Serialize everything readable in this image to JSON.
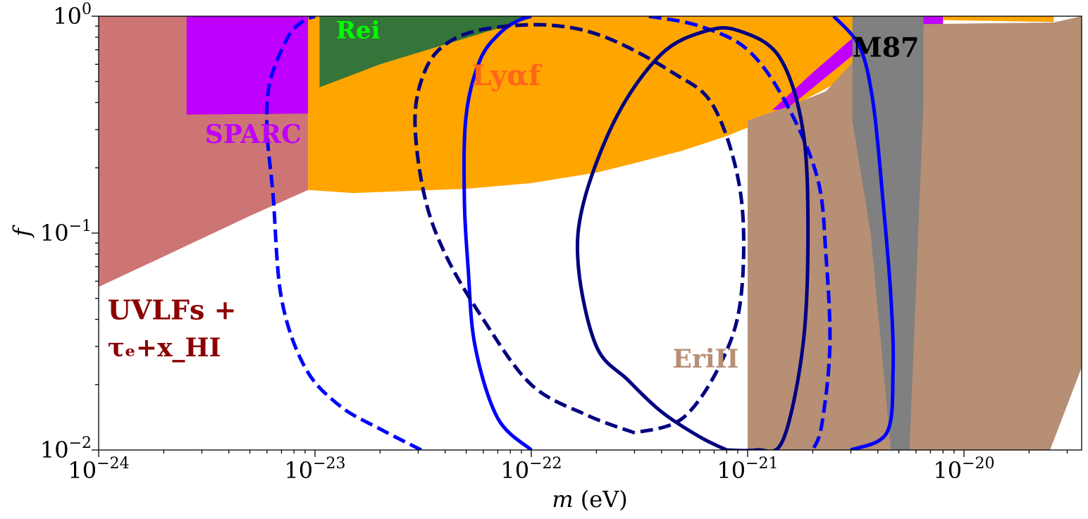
{
  "chart_data": {
    "type": "area",
    "xlabel_var": "m",
    "xlabel_unit": "(eV)",
    "ylabel": "f",
    "x_scale": "log",
    "y_scale": "log",
    "xlim": [
      1e-24,
      3.5e-20
    ],
    "ylim": [
      0.01,
      1
    ],
    "x_ticks": [
      {
        "value": 1e-24,
        "base": "10",
        "exp": "−24"
      },
      {
        "value": 1e-23,
        "base": "10",
        "exp": "−23"
      },
      {
        "value": 1e-22,
        "base": "10",
        "exp": "−22"
      },
      {
        "value": 1e-21,
        "base": "10",
        "exp": "−21"
      },
      {
        "value": 1e-20,
        "base": "10",
        "exp": "−20"
      }
    ],
    "y_ticks": [
      {
        "value": 0.01,
        "base": "10",
        "exp": "−2"
      },
      {
        "value": 0.1,
        "base": "10",
        "exp": "−1"
      },
      {
        "value": 1,
        "base": "10",
        "exp": "0"
      }
    ],
    "regions": [
      {
        "name": "UVLFs",
        "color": "#cd7575",
        "points": [
          [
            1e-24,
            0.0565
          ],
          [
            2e-24,
            0.078
          ],
          [
            5e-24,
            0.12
          ],
          [
            9.3e-24,
            0.158
          ],
          [
            9.3e-24,
            1
          ],
          [
            1e-24,
            1
          ]
        ]
      },
      {
        "name": "SPARC",
        "color": "#bf00ff",
        "points": [
          [
            2.55e-24,
            1
          ],
          [
            9.3e-24,
            1
          ],
          [
            9.3e-24,
            0.356
          ],
          [
            2.55e-24,
            0.352
          ]
        ]
      },
      {
        "name": "Lyαf",
        "color": "#ffa500",
        "points": [
          [
            9.3e-24,
            1
          ],
          [
            2.6e-20,
            1
          ],
          [
            2.6e-20,
            0.94
          ],
          [
            8e-21,
            0.96
          ],
          [
            8e-21,
            0.89
          ],
          [
            1.2e-21,
            0.33
          ],
          [
            8e-22,
            0.28
          ],
          [
            5e-22,
            0.24
          ],
          [
            3e-22,
            0.21
          ],
          [
            2e-22,
            0.19
          ],
          [
            1e-22,
            0.17
          ],
          [
            5e-23,
            0.16
          ],
          [
            1.5e-23,
            0.153
          ],
          [
            9.3e-24,
            0.158
          ]
        ]
      },
      {
        "name": "SPARC-high",
        "color": "#bf00ff",
        "points": [
          [
            1.5e-21,
            0.37
          ],
          [
            3e-21,
            0.65
          ],
          [
            4e-21,
            0.8
          ],
          [
            8e-21,
            0.9
          ],
          [
            8e-21,
            1
          ],
          [
            4e-21,
            1
          ],
          [
            2e-21,
            0.55
          ],
          [
            1.3e-21,
            0.37
          ]
        ]
      },
      {
        "name": "EriII",
        "color": "#b68f75",
        "points": [
          [
            1e-21,
            0.01
          ],
          [
            1e-21,
            0.33
          ],
          [
            1.5e-21,
            0.38
          ],
          [
            2.3e-21,
            0.45
          ],
          [
            3e-21,
            0.6
          ],
          [
            6.5e-21,
            0.92
          ],
          [
            2.6e-20,
            0.935
          ],
          [
            3.5e-20,
            1
          ],
          [
            3.5e-20,
            0.024
          ],
          [
            2.5e-20,
            0.01
          ]
        ]
      },
      {
        "name": "Rei",
        "color": "#35753a",
        "points": [
          [
            1.05e-23,
            1
          ],
          [
            1e-22,
            1
          ],
          [
            1e-22,
            0.98
          ],
          [
            2e-23,
            0.6
          ],
          [
            1.05e-23,
            0.47
          ]
        ]
      },
      {
        "name": "M87",
        "color": "#808080",
        "points": [
          [
            3.05e-21,
            1
          ],
          [
            6.5e-21,
            1
          ],
          [
            6.5e-21,
            0.4
          ],
          [
            5.6e-21,
            0.01
          ],
          [
            4.6e-21,
            0.01
          ],
          [
            3.7e-21,
            0.1
          ],
          [
            3.05e-21,
            0.33
          ]
        ]
      }
    ],
    "curves": [
      {
        "color": "#0000ff",
        "dash": true,
        "points": [
          [
            3.1e-23,
            0.01
          ],
          [
            2e-23,
            0.0125
          ],
          [
            1.3e-23,
            0.016
          ],
          [
            9e-24,
            0.024
          ],
          [
            7e-24,
            0.05
          ],
          [
            6.4e-24,
            0.15
          ],
          [
            6e-24,
            0.3
          ],
          [
            6.2e-24,
            0.5
          ],
          [
            7.5e-24,
            0.8
          ],
          [
            8.7e-24,
            0.94
          ],
          [
            1e-23,
            1
          ]
        ]
      },
      {
        "color": "#0000ff",
        "dash": true,
        "points": [
          [
            3.5e-22,
            1
          ],
          [
            6e-22,
            0.9
          ],
          [
            1e-21,
            0.7
          ],
          [
            1.5e-21,
            0.4
          ],
          [
            2.1e-21,
            0.18
          ],
          [
            2.3e-21,
            0.08
          ],
          [
            2.4e-21,
            0.03
          ],
          [
            2.2e-21,
            0.013
          ],
          [
            2e-21,
            0.01
          ]
        ]
      },
      {
        "color": "#0000ff",
        "dash": false,
        "points": [
          [
            1e-22,
            0.01
          ],
          [
            7e-23,
            0.014
          ],
          [
            5.5e-23,
            0.03
          ],
          [
            5.1e-23,
            0.07
          ],
          [
            4.9e-23,
            0.15
          ],
          [
            5e-23,
            0.35
          ],
          [
            5.8e-23,
            0.63
          ],
          [
            7.2e-23,
            0.84
          ],
          [
            8.8e-23,
            0.96
          ],
          [
            1e-22,
            1
          ]
        ]
      },
      {
        "color": "#0000ff",
        "dash": false,
        "points": [
          [
            2.5e-21,
            1
          ],
          [
            3.3e-21,
            0.72
          ],
          [
            3.8e-21,
            0.4
          ],
          [
            4.2e-21,
            0.15
          ],
          [
            4.6e-21,
            0.05
          ],
          [
            4.7e-21,
            0.023
          ],
          [
            4.4e-21,
            0.012
          ],
          [
            3e-21,
            0.01
          ]
        ]
      },
      {
        "color": "#000080",
        "dash": true,
        "points": [
          [
            3e-22,
            0.012
          ],
          [
            1.8e-22,
            0.0145
          ],
          [
            1e-22,
            0.02
          ],
          [
            6e-23,
            0.04
          ],
          [
            4e-23,
            0.08
          ],
          [
            3.2e-23,
            0.15
          ],
          [
            2.9e-23,
            0.33
          ],
          [
            3.2e-23,
            0.55
          ],
          [
            4e-23,
            0.74
          ],
          [
            6e-23,
            0.87
          ],
          [
            1.2e-22,
            0.91
          ],
          [
            2.2e-22,
            0.8
          ],
          [
            4.5e-22,
            0.55
          ],
          [
            7e-22,
            0.38
          ],
          [
            9.3e-22,
            0.15
          ],
          [
            9.3e-22,
            0.05
          ],
          [
            7.5e-22,
            0.025
          ],
          [
            5e-22,
            0.014
          ],
          [
            3e-22,
            0.012
          ]
        ]
      },
      {
        "color": "#000080",
        "dash": false,
        "points": [
          [
            8e-22,
            0.01
          ],
          [
            6e-22,
            0.0115
          ],
          [
            4e-22,
            0.015
          ],
          [
            2.8e-22,
            0.021
          ],
          [
            2e-22,
            0.03
          ],
          [
            1.65e-22,
            0.07
          ],
          [
            1.75e-22,
            0.14
          ],
          [
            2.5e-22,
            0.35
          ],
          [
            4e-22,
            0.67
          ],
          [
            6.3e-22,
            0.85
          ],
          [
            9e-22,
            0.86
          ],
          [
            1.4e-21,
            0.65
          ],
          [
            1.8e-21,
            0.3
          ],
          [
            1.9e-21,
            0.1
          ],
          [
            1.8e-21,
            0.03
          ],
          [
            1.45e-21,
            0.011
          ],
          [
            1.1e-21,
            0.01
          ],
          [
            8e-22,
            0.01
          ]
        ]
      }
    ],
    "annotations": [
      {
        "id": "rei",
        "text": "Rei",
        "x": 1.25e-23,
        "y": 0.79,
        "color": "#00ff00",
        "size": 34
      },
      {
        "id": "lyaf",
        "text": "Lyαf",
        "x": 5.3e-23,
        "y": 0.48,
        "color": "#ff6619",
        "size": 40
      },
      {
        "id": "sparc",
        "text": "SPARC",
        "x": 3.1e-24,
        "y": 0.26,
        "color": "#bf00ff",
        "size": 36
      },
      {
        "id": "m87",
        "text": "M87",
        "x": 3.05e-21,
        "y": 0.65,
        "color": "#000000",
        "size": 38,
        "bold": false
      },
      {
        "id": "erii",
        "text": "EriII",
        "x": 4.5e-22,
        "y": 0.024,
        "color": "#b68f75",
        "size": 36
      },
      {
        "id": "uvlfs1",
        "text": "UVLFs +",
        "x": 1.1e-24,
        "y": 0.04,
        "color": "#8b0000",
        "size": 38
      },
      {
        "id": "uvlfs2",
        "text": "τₑ+x_HI",
        "x": 1.1e-24,
        "y": 0.027,
        "color": "#8b0000",
        "size": 36
      }
    ]
  }
}
